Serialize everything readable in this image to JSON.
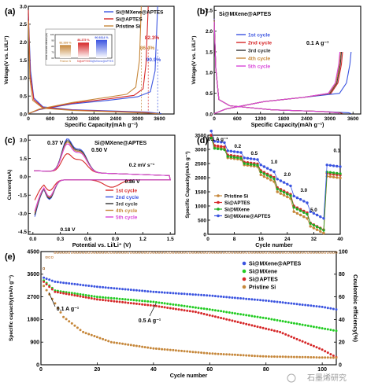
{
  "chart_data": [
    {
      "panel": "(a)",
      "type": "line",
      "xlabel": "Specific Capacity(mAh g⁻¹)",
      "ylabel": "Voltage(V vs. Li/Li⁺)",
      "x_ticks": [
        "0",
        "600",
        "1200",
        "1800",
        "2400",
        "3000",
        "3600"
      ],
      "y_ticks": [
        "0.0",
        "0.5",
        "1.0",
        "1.5",
        "2.0",
        "2.5",
        "3.0"
      ],
      "xlim": [
        0,
        4000
      ],
      "ylim": [
        0,
        3.0
      ],
      "legend": [
        "Si@MXene@APTES",
        "Si@APTES",
        "Pristine Si"
      ],
      "colors": [
        "#3b54e0",
        "#d62728",
        "#c6873a"
      ],
      "series": [
        {
          "name": "Si@MXene@APTES",
          "color": "#3b54e0",
          "discharge": [
            [
              0,
              2.75
            ],
            [
              60,
              1.2
            ],
            [
              150,
              0.45
            ],
            [
              400,
              0.2
            ],
            [
              1200,
              0.12
            ],
            [
              2400,
              0.08
            ],
            [
              3300,
              0.05
            ],
            [
              3650,
              0.01
            ]
          ],
          "charge": [
            [
              0,
              0.01
            ],
            [
              300,
              0.12
            ],
            [
              1200,
              0.28
            ],
            [
              2200,
              0.38
            ],
            [
              3000,
              0.48
            ],
            [
              3350,
              0.62
            ],
            [
              3480,
              1.2
            ],
            [
              3550,
              3.0
            ]
          ]
        },
        {
          "name": "Si@APTES",
          "color": "#d62728",
          "discharge": [
            [
              0,
              2.9
            ],
            [
              50,
              1.1
            ],
            [
              150,
              0.4
            ],
            [
              400,
              0.18
            ],
            [
              1200,
              0.11
            ],
            [
              2400,
              0.07
            ],
            [
              3200,
              0.04
            ],
            [
              3500,
              0.01
            ]
          ],
          "charge": [
            [
              0,
              0.01
            ],
            [
              300,
              0.13
            ],
            [
              1200,
              0.3
            ],
            [
              2200,
              0.42
            ],
            [
              2900,
              0.52
            ],
            [
              3150,
              0.7
            ],
            [
              3230,
              1.4
            ],
            [
              3290,
              3.0
            ]
          ]
        },
        {
          "name": "Pristine Si",
          "color": "#c6873a",
          "discharge": [
            [
              0,
              2.6
            ],
            [
              40,
              1.0
            ],
            [
              120,
              0.38
            ],
            [
              400,
              0.16
            ],
            [
              1200,
              0.1
            ],
            [
              2400,
              0.06
            ],
            [
              3100,
              0.03
            ],
            [
              3600,
              0.01
            ]
          ],
          "charge": [
            [
              0,
              0.01
            ],
            [
              300,
              0.14
            ],
            [
              1200,
              0.32
            ],
            [
              2000,
              0.44
            ],
            [
              2700,
              0.55
            ],
            [
              2950,
              0.75
            ],
            [
              3050,
              1.5
            ],
            [
              3100,
              3.0
            ]
          ]
        }
      ],
      "annotations": [
        "82.3%",
        "86.4%",
        "90.9%"
      ],
      "inset": {
        "ylabel": "Initial coulombic efficiency(%)",
        "categories": [
          "Pristine Si",
          "Si@APTES",
          "Si@MXene@APTES"
        ],
        "values": [
          82.3,
          86.4,
          90.9
        ],
        "value_labels": [
          "82.338 %",
          "86.375 %",
          "90.9314 %"
        ],
        "y_ticks": [
          "100",
          "90",
          "80",
          "70",
          "60"
        ],
        "colors": [
          "#c6873a",
          "#d62728",
          "#3b54e0"
        ]
      }
    },
    {
      "panel": "(b)",
      "type": "line",
      "title": "Si@MXene@APTES",
      "xlabel": "Specific Capacity(mAh g⁻¹)",
      "ylabel": "Voltage(V vs. Li/Li⁺)",
      "x_ticks": [
        "0",
        "600",
        "1200",
        "1800",
        "2400",
        "3000",
        "3600"
      ],
      "y_ticks": [
        "0.0",
        "0.5",
        "1.0",
        "1.5",
        "2.0",
        "2.5"
      ],
      "xlim": [
        0,
        3800
      ],
      "ylim": [
        0,
        2.6
      ],
      "legend": [
        "1st cycle",
        "2nd cycle",
        "3rd cycle",
        "4th cycle",
        "5th cycle"
      ],
      "annotation": "0.1 A g⁻¹",
      "series": [
        {
          "name": "1st cycle",
          "color": "#3b54e0",
          "end": 3550
        },
        {
          "name": "2nd cycle",
          "color": "#d62728",
          "end": 3330
        },
        {
          "name": "3rd cycle",
          "color": "#333333",
          "end": 3300
        },
        {
          "name": "4th cycle",
          "color": "#c6873a",
          "end": 3280
        },
        {
          "name": "5th cycle",
          "color": "#d946d9",
          "end": 3260
        }
      ]
    },
    {
      "panel": "(c)",
      "type": "line",
      "title": "Si@MXene@APTES",
      "xlabel": "Potential vs. Li/Li⁺ (V)",
      "ylabel": "Current(mA)",
      "x_ticks": [
        "0.0",
        "0.3",
        "0.6",
        "0.9",
        "1.2",
        "1.5"
      ],
      "y_ticks": [
        "3.0",
        "1.5",
        "0.0",
        "-1.5",
        "-3.0",
        "-4.5"
      ],
      "xlim": [
        -0.05,
        1.55
      ],
      "ylim": [
        -4.7,
        3.4
      ],
      "legend": [
        "1st cycle",
        "2nd cycle",
        "3rd cycle",
        "4th cycle",
        "5th cycle"
      ],
      "annotations": [
        "0.37 V",
        "0.50 V",
        "0.2 mV s⁻¹",
        "0.86 V",
        "0.18 V"
      ]
    },
    {
      "panel": "(d)",
      "type": "scatter",
      "xlabel": "Cycle number",
      "ylabel": "Specific Capacity(mAh g⁻¹)",
      "x_ticks": [
        "0",
        "8",
        "16",
        "24",
        "32",
        "40"
      ],
      "y_ticks": [
        "0",
        "500",
        "1000",
        "1500",
        "2000",
        "2500",
        "3000",
        "3500"
      ],
      "xlim": [
        0,
        40
      ],
      "ylim": [
        0,
        3500
      ],
      "legend": [
        "Pristine Si",
        "Si@APTES",
        "Si@MXene",
        "Si@MXene@APTES"
      ],
      "rate_labels": [
        "0.1 A g⁻¹",
        "0.2",
        "0.5",
        "1.0",
        "2.0",
        "3.0",
        "5.0",
        "0.1"
      ],
      "series": [
        {
          "name": "Pristine Si",
          "color": "#c6873a",
          "steps": [
            3100,
            2700,
            2450,
            2100,
            1500,
            800,
            280,
            2050
          ]
        },
        {
          "name": "Si@APTES",
          "color": "#d62728",
          "steps": [
            3150,
            2800,
            2550,
            2250,
            1650,
            1000,
            400,
            2150
          ]
        },
        {
          "name": "Si@MXene",
          "color": "#22aa22",
          "steps": [
            3050,
            2750,
            2500,
            2200,
            1600,
            950,
            380,
            2200
          ]
        },
        {
          "name": "Si@MXene@APTES",
          "color": "#3b54e0",
          "steps": [
            3300,
            2950,
            2700,
            2450,
            1950,
            1350,
            800,
            2450
          ]
        }
      ]
    },
    {
      "panel": "(e)",
      "type": "scatter",
      "xlabel": "Cycle number",
      "ylabel": "Specific capacity(mAh g⁻¹)",
      "y2label": "Coulombic efficiency(%)",
      "x_ticks": [
        "0",
        "20",
        "40",
        "60",
        "80",
        "100"
      ],
      "y_ticks": [
        "0",
        "900",
        "1800",
        "2700",
        "3600",
        "4500"
      ],
      "y2_ticks": [
        "0",
        "20",
        "40",
        "60",
        "80",
        "100"
      ],
      "xlim": [
        0,
        105
      ],
      "ylim": [
        0,
        4500
      ],
      "legend": [
        "Si@MXene@APTES",
        "Si@MXene",
        "Si@APTES",
        "Pristine Si"
      ],
      "annotations": [
        "0.1 A g⁻¹",
        "0.5 A g⁻¹"
      ],
      "series": [
        {
          "name": "Si@MXene@APTES",
          "color": "#3b54e0",
          "points": [
            [
              0,
              3500
            ],
            [
              5,
              3300
            ],
            [
              20,
              3100
            ],
            [
              40,
              2900
            ],
            [
              60,
              2750
            ],
            [
              80,
              2550
            ],
            [
              100,
              2300
            ],
            [
              105,
              2200
            ]
          ]
        },
        {
          "name": "Si@MXene",
          "color": "#22cc22",
          "points": [
            [
              0,
              3450
            ],
            [
              5,
              2950
            ],
            [
              20,
              2700
            ],
            [
              40,
              2500
            ],
            [
              60,
              2200
            ],
            [
              80,
              1850
            ],
            [
              100,
              1450
            ],
            [
              105,
              1350
            ]
          ]
        },
        {
          "name": "Si@APTES",
          "color": "#d62728",
          "points": [
            [
              0,
              3400
            ],
            [
              5,
              2900
            ],
            [
              20,
              2600
            ],
            [
              40,
              2350
            ],
            [
              55,
              2100
            ],
            [
              70,
              1700
            ],
            [
              85,
              1300
            ],
            [
              100,
              600
            ],
            [
              105,
              300
            ]
          ]
        },
        {
          "name": "Pristine Si",
          "color": "#c6873a",
          "points": [
            [
              0,
              3300
            ],
            [
              3,
              2800
            ],
            [
              8,
              1900
            ],
            [
              15,
              1300
            ],
            [
              25,
              900
            ],
            [
              40,
              650
            ],
            [
              60,
              450
            ],
            [
              80,
              330
            ],
            [
              105,
              280
            ]
          ]
        }
      ]
    }
  ],
  "panel_labels": [
    "(a)",
    "(b)",
    "(c)",
    "(d)",
    "(e)"
  ],
  "watermark": "石墨烯研究"
}
